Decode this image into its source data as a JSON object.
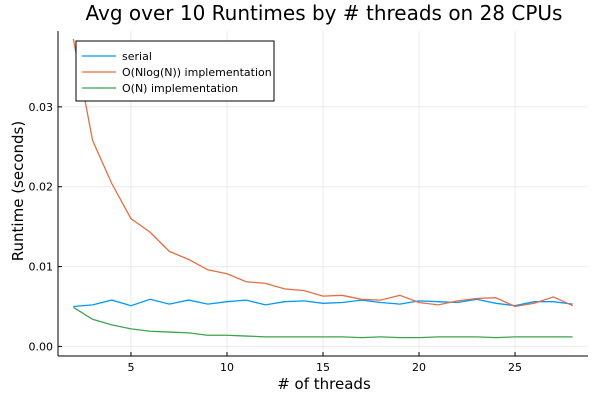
{
  "chart_data": {
    "type": "line",
    "title": "Avg over 10 Runtimes by # threads on 28 CPUs",
    "xlabel": "# of threads",
    "ylabel": "Runtime (seconds)",
    "xlim": [
      1.2,
      28.8
    ],
    "ylim": [
      -0.0012,
      0.0395
    ],
    "x_ticks": [
      5,
      10,
      15,
      20,
      25
    ],
    "x_tick_labels": [
      "5",
      "10",
      "15",
      "20",
      "25"
    ],
    "y_ticks": [
      0,
      0.01,
      0.02,
      0.03
    ],
    "y_tick_labels": [
      "0.00",
      "0.01",
      "0.02",
      "0.03"
    ],
    "grid": true,
    "legend_position": "top-left",
    "x": [
      2,
      3,
      4,
      5,
      6,
      7,
      8,
      9,
      10,
      11,
      12,
      13,
      14,
      15,
      16,
      17,
      18,
      19,
      20,
      21,
      22,
      23,
      24,
      25,
      26,
      27,
      28
    ],
    "series": [
      {
        "name": "serial",
        "color": "#009af9",
        "values": [
          0.005,
          0.0052,
          0.0058,
          0.0051,
          0.0059,
          0.0053,
          0.0058,
          0.0053,
          0.0056,
          0.0058,
          0.0052,
          0.0056,
          0.0057,
          0.0054,
          0.0055,
          0.0058,
          0.0055,
          0.0053,
          0.0057,
          0.0056,
          0.0055,
          0.0059,
          0.0054,
          0.0051,
          0.0056,
          0.0056,
          0.0053
        ]
      },
      {
        "name": "O(Nlog(N)) implementation",
        "color": "#e26f46",
        "values": [
          0.0385,
          0.0258,
          0.0204,
          0.016,
          0.0143,
          0.0119,
          0.0109,
          0.0096,
          0.0091,
          0.0081,
          0.0079,
          0.0072,
          0.007,
          0.0063,
          0.0064,
          0.0059,
          0.0058,
          0.0064,
          0.0055,
          0.0052,
          0.0057,
          0.006,
          0.0061,
          0.005,
          0.0054,
          0.0062,
          0.0051
        ]
      },
      {
        "name": "O(N) implementation",
        "color": "#3da44d",
        "values": [
          0.0049,
          0.0034,
          0.0027,
          0.0022,
          0.0019,
          0.0018,
          0.0017,
          0.0014,
          0.0014,
          0.0013,
          0.0012,
          0.0012,
          0.0012,
          0.0012,
          0.0012,
          0.0011,
          0.0012,
          0.0011,
          0.0011,
          0.0012,
          0.0012,
          0.0012,
          0.0011,
          0.0012,
          0.0012,
          0.0012,
          0.0012
        ]
      }
    ]
  }
}
